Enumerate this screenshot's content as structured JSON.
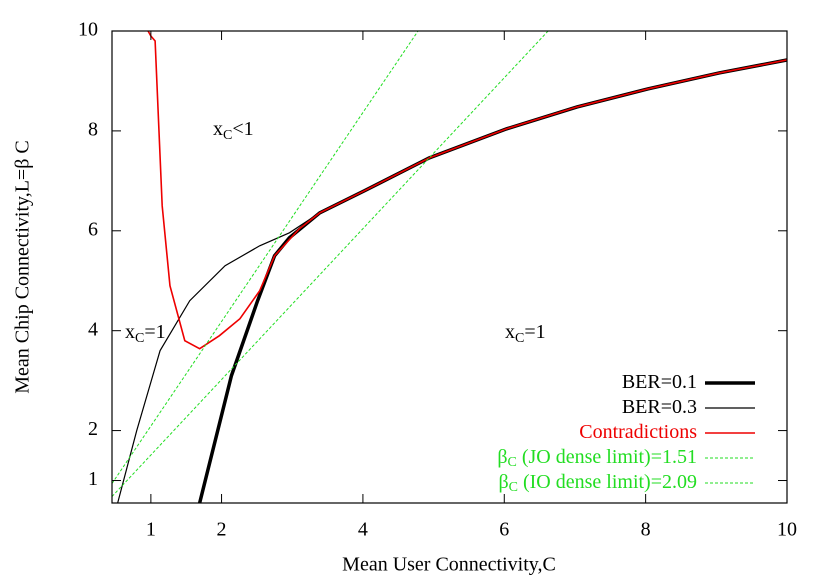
{
  "chart_data": {
    "type": "line",
    "xlabel": "Mean User Connectivity,C",
    "ylabel": "Mean Chip Connectivity,L=β C",
    "xlim": [
      0.45,
      10
    ],
    "ylim": [
      0.55,
      10
    ],
    "xticks": [
      1,
      2,
      4,
      6,
      8,
      10
    ],
    "yticks": [
      1,
      2,
      4,
      6,
      8,
      10
    ],
    "legend": "lower right",
    "series": [
      {
        "name": "BER=0.1",
        "color": "#000000",
        "line_width": 3.5,
        "x": [
          1.69,
          2.14,
          2.51,
          2.75,
          2.96,
          3.39,
          4.02,
          4.94,
          6.03,
          7.03,
          8.03,
          9.04,
          10
        ],
        "values": [
          0.55,
          3.1,
          4.6,
          5.5,
          5.86,
          6.36,
          6.8,
          7.46,
          8.04,
          8.48,
          8.84,
          9.16,
          9.42
        ]
      },
      {
        "name": "BER=0.3",
        "color": "#000000",
        "line_width": 1.2,
        "x": [
          0.53,
          0.8,
          1.13,
          1.55,
          2.05,
          2.54,
          2.96,
          3.39,
          4.02,
          4.94,
          6.03,
          7.03,
          8.03,
          9.04,
          10
        ],
        "values": [
          0.55,
          2.0,
          3.6,
          4.6,
          5.3,
          5.7,
          5.96,
          6.36,
          6.8,
          7.46,
          8.04,
          8.48,
          8.84,
          9.16,
          9.42
        ]
      },
      {
        "name": "Contradictions",
        "color": "#ee0000",
        "line_width": 1.6,
        "x": [
          0.96,
          1.0,
          1.06,
          1.16,
          1.27,
          1.48,
          1.69,
          1.97,
          2.26,
          2.54,
          2.75,
          3.1,
          3.39,
          4.02,
          4.94,
          6.03,
          7.03,
          8.03,
          9.04,
          10
        ],
        "values": [
          10,
          9.9,
          9.8,
          6.5,
          4.9,
          3.8,
          3.64,
          3.9,
          4.24,
          4.8,
          5.5,
          6.04,
          6.36,
          6.8,
          7.46,
          8.04,
          8.48,
          8.84,
          9.16,
          9.42
        ]
      },
      {
        "name": "β",
        "name_sub": "C",
        "name_tail": " (JO dense limit)=1.51",
        "color": "#22dd22",
        "line_width": 1,
        "dash": true,
        "x": [
          0.45,
          6.62
        ],
        "values": [
          0.68,
          10
        ]
      },
      {
        "name": "β",
        "name_sub": "C",
        "name_tail": " (IO dense limit)=2.09",
        "color": "#22dd22",
        "line_width": 1,
        "dash": true,
        "x": [
          0.45,
          4.78
        ],
        "values": [
          0.94,
          10
        ]
      }
    ],
    "annotations": [
      {
        "main": "x",
        "sub": "C",
        "tail": "<1"
      },
      {
        "main": "x",
        "sub": "C",
        "tail": "=1"
      },
      {
        "main": "x",
        "sub": "C",
        "tail": "=1"
      }
    ]
  }
}
